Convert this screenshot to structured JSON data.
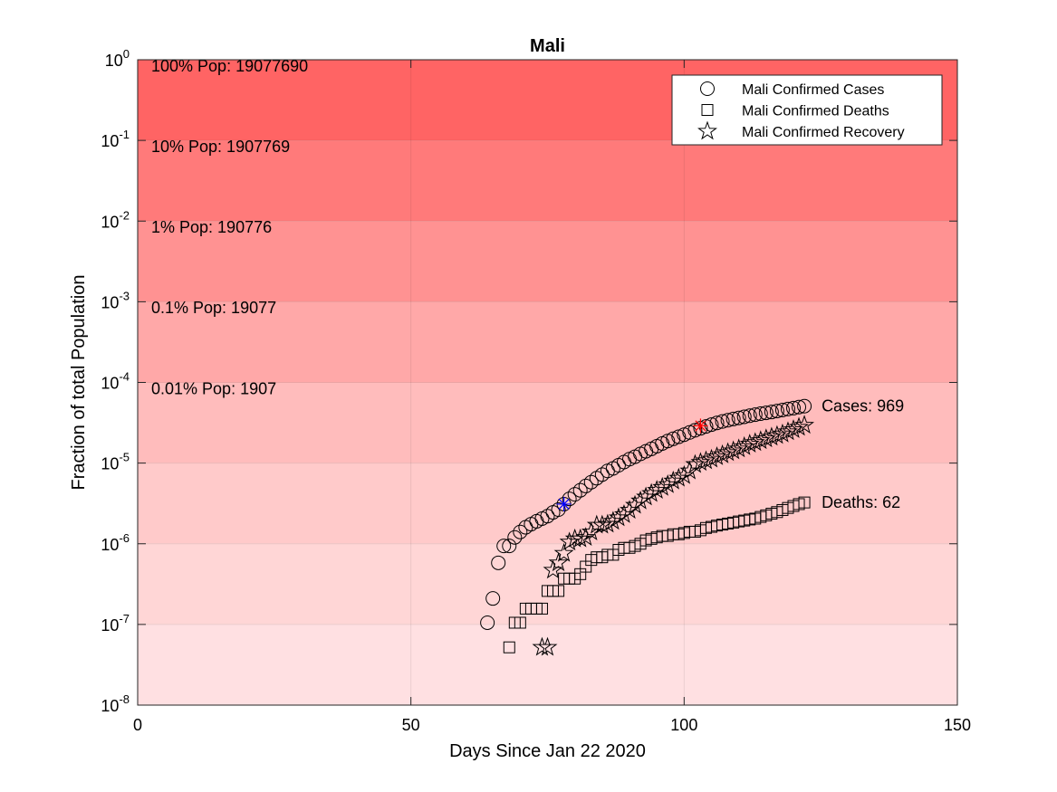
{
  "chart_data": {
    "type": "scatter",
    "title": "Mali",
    "xlabel": "Days Since Jan 22 2020",
    "ylabel": "Fraction of total Population",
    "xlim": [
      0,
      150
    ],
    "ylim": [
      1e-08,
      1
    ],
    "yscale": "log",
    "grid": true,
    "legend_position": "top-right",
    "x_ticks": [
      {
        "value": 0,
        "label": "0"
      },
      {
        "value": 50,
        "label": "50"
      },
      {
        "value": 100,
        "label": "100"
      },
      {
        "value": 150,
        "label": "150"
      }
    ],
    "y_ticks": [
      {
        "value": 1e-08,
        "base": "10",
        "exp": "-8"
      },
      {
        "value": 1e-07,
        "base": "10",
        "exp": "-7"
      },
      {
        "value": 1e-06,
        "base": "10",
        "exp": "-6"
      },
      {
        "value": 1e-05,
        "base": "10",
        "exp": "-5"
      },
      {
        "value": 0.0001,
        "base": "10",
        "exp": "-4"
      },
      {
        "value": 0.001,
        "base": "10",
        "exp": "-3"
      },
      {
        "value": 0.01,
        "base": "10",
        "exp": "-2"
      },
      {
        "value": 0.1,
        "base": "10",
        "exp": "-1"
      },
      {
        "value": 1,
        "base": "10",
        "exp": "0"
      }
    ],
    "population_bands": [
      {
        "lower": 0.1,
        "upper": 1,
        "label": "100% Pop: 19077690",
        "color": "#ff6464"
      },
      {
        "lower": 0.01,
        "upper": 0.1,
        "label": "10% Pop: 1907769",
        "color": "#ff7a7a"
      },
      {
        "lower": 0.001,
        "upper": 0.01,
        "label": "1% Pop: 190776",
        "color": "#ff9292"
      },
      {
        "lower": 0.0001,
        "upper": 0.001,
        "label": "0.1% Pop: 19077",
        "color": "#ffa8a8"
      },
      {
        "lower": 1e-05,
        "upper": 0.0001,
        "label": "0.01% Pop: 1907",
        "color": "#ffbcbc"
      },
      {
        "lower": 1e-06,
        "upper": 1e-05,
        "label": "",
        "color": "#ffcaca"
      },
      {
        "lower": 1e-07,
        "upper": 1e-06,
        "label": "",
        "color": "#ffd6d6"
      },
      {
        "lower": 1e-08,
        "upper": 1e-07,
        "label": "",
        "color": "#ffe0e2"
      }
    ],
    "series": [
      {
        "name": "Mali Confirmed Cases",
        "marker": "circle",
        "end_label": "Cases: 969",
        "x": [
          64,
          65,
          66,
          67,
          68,
          69,
          70,
          71,
          72,
          73,
          74,
          75,
          76,
          77,
          78,
          79,
          80,
          81,
          82,
          83,
          84,
          85,
          86,
          87,
          88,
          89,
          90,
          91,
          92,
          93,
          94,
          95,
          96,
          97,
          98,
          99,
          100,
          101,
          102,
          103,
          104,
          105,
          106,
          107,
          108,
          109,
          110,
          111,
          112,
          113,
          114,
          115,
          116,
          117,
          118,
          119,
          120,
          121,
          122
        ],
        "y": [
          1.05e-07,
          2.1e-07,
          5.8e-07,
          9.4e-07,
          9.4e-07,
          1.2e-06,
          1.4e-06,
          1.6e-06,
          1.75e-06,
          1.9e-06,
          2.05e-06,
          2.2e-06,
          2.45e-06,
          2.65e-06,
          3.1e-06,
          3.6e-06,
          4.1e-06,
          4.6e-06,
          5.2e-06,
          5.8e-06,
          6.5e-06,
          7.2e-06,
          8e-06,
          8.6e-06,
          9.4e-06,
          1.03e-05,
          1.12e-05,
          1.2e-05,
          1.3e-05,
          1.4e-05,
          1.5e-05,
          1.62e-05,
          1.75e-05,
          1.88e-05,
          2e-05,
          2.12e-05,
          2.25e-05,
          2.4e-05,
          2.55e-05,
          2.7e-05,
          2.85e-05,
          3e-05,
          3.15e-05,
          3.28e-05,
          3.4e-05,
          3.52e-05,
          3.63e-05,
          3.75e-05,
          3.87e-05,
          3.99e-05,
          4.1e-05,
          4.2e-05,
          4.3e-05,
          4.42e-05,
          4.55e-05,
          4.68e-05,
          4.8e-05,
          4.95e-05,
          5.08e-05
        ]
      },
      {
        "name": "Mali Confirmed Deaths",
        "marker": "square",
        "end_label": "Deaths: 62",
        "x": [
          68,
          69,
          70,
          71,
          72,
          73,
          74,
          75,
          76,
          77,
          78,
          79,
          80,
          81,
          82,
          83,
          84,
          85,
          86,
          87,
          88,
          89,
          90,
          91,
          92,
          93,
          94,
          95,
          96,
          97,
          98,
          99,
          100,
          101,
          102,
          103,
          104,
          105,
          106,
          107,
          108,
          109,
          110,
          111,
          112,
          113,
          114,
          115,
          116,
          117,
          118,
          119,
          120,
          121,
          122
        ],
        "y": [
          5.2e-08,
          1.05e-07,
          1.05e-07,
          1.57e-07,
          1.57e-07,
          1.57e-07,
          1.57e-07,
          2.6e-07,
          2.6e-07,
          2.6e-07,
          3.7e-07,
          3.7e-07,
          3.7e-07,
          4.2e-07,
          5.2e-07,
          6.3e-07,
          6.8e-07,
          6.8e-07,
          7.3e-07,
          7.3e-07,
          8.4e-07,
          8.9e-07,
          8.9e-07,
          9.4e-07,
          1e-06,
          1.1e-06,
          1.15e-06,
          1.2e-06,
          1.25e-06,
          1.25e-06,
          1.31e-06,
          1.31e-06,
          1.36e-06,
          1.41e-06,
          1.41e-06,
          1.47e-06,
          1.57e-06,
          1.62e-06,
          1.68e-06,
          1.73e-06,
          1.78e-06,
          1.83e-06,
          1.89e-06,
          1.94e-06,
          2e-06,
          2.05e-06,
          2.15e-06,
          2.25e-06,
          2.36e-06,
          2.47e-06,
          2.62e-06,
          2.78e-06,
          2.94e-06,
          3.1e-06,
          3.25e-06
        ]
      },
      {
        "name": "Mali Confirmed Recovery",
        "marker": "star",
        "x": [
          74,
          75,
          76,
          77,
          78,
          79,
          80,
          81,
          82,
          83,
          84,
          85,
          86,
          87,
          88,
          89,
          90,
          91,
          92,
          93,
          94,
          95,
          96,
          97,
          98,
          99,
          100,
          101,
          102,
          103,
          104,
          105,
          106,
          107,
          108,
          109,
          110,
          111,
          112,
          113,
          114,
          115,
          116,
          117,
          118,
          119,
          120,
          121,
          122
        ],
        "y": [
          5.2e-08,
          5.2e-08,
          4.7e-07,
          5.8e-07,
          7.6e-07,
          1.05e-06,
          1.15e-06,
          1.15e-06,
          1.2e-06,
          1.4e-06,
          1.7e-06,
          1.7e-06,
          1.75e-06,
          1.9e-06,
          2.1e-06,
          2.3e-06,
          2.6e-06,
          3e-06,
          3.4e-06,
          3.8e-06,
          4.2e-06,
          4.6e-06,
          5e-06,
          5.4e-06,
          6e-06,
          6.5e-06,
          7e-06,
          8e-06,
          9.6e-06,
          1.02e-05,
          1.07e-05,
          1.12e-05,
          1.2e-05,
          1.27e-05,
          1.35e-05,
          1.42e-05,
          1.5e-05,
          1.6e-05,
          1.72e-05,
          1.8e-05,
          1.9e-05,
          2e-05,
          2.1e-05,
          2.2e-05,
          2.3e-05,
          2.45e-05,
          2.6e-05,
          2.78e-05,
          2.95e-05
        ]
      }
    ],
    "highlights": [
      {
        "x": 78,
        "y": 3.1e-06,
        "color": "#0000ff"
      },
      {
        "x": 103,
        "y": 2.9e-05,
        "color": "#ff0000"
      }
    ]
  }
}
